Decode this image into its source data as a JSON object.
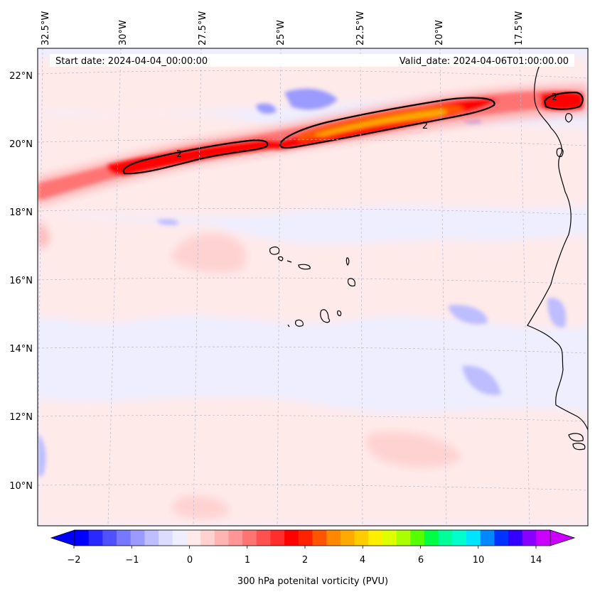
{
  "map": {
    "start_label": "Start date: 2024-04-04_00:00:00",
    "valid_label": "Valid_date: 2024-04-06T01:00:00.00",
    "lon_ticks": [
      "32.5°W",
      "30°W",
      "27.5°W",
      "25°W",
      "22.5°W",
      "20°W",
      "17.5°W"
    ],
    "lat_ticks": [
      "22°N",
      "20°N",
      "18°N",
      "16°N",
      "14°N",
      "12°N",
      "10°N"
    ],
    "contour_labels": [
      "2",
      "2",
      "2"
    ],
    "background_color": "#eeeeff"
  },
  "colorbar": {
    "label": "300 hPa potenital vorticity (PVU)",
    "tick_labels": [
      "−2",
      "−1",
      "0",
      "1",
      "2",
      "4",
      "6",
      "10",
      "14"
    ],
    "colors": [
      "#0000ff",
      "#2828ff",
      "#5050ff",
      "#7777ff",
      "#9a9aff",
      "#bdbdff",
      "#dcdcff",
      "#eeeeff",
      "#ffeaea",
      "#ffd2d2",
      "#ffb4b4",
      "#ff9595",
      "#ff7373",
      "#ff5050",
      "#ff2d2d",
      "#ff0000",
      "#ff2200",
      "#ff5500",
      "#ff8800",
      "#ffaa00",
      "#ffcc00",
      "#ffee00",
      "#ddff00",
      "#aaff00",
      "#55ff00",
      "#00ff44",
      "#00ff99",
      "#00ffcc",
      "#00e5ff",
      "#0088ff",
      "#0033ff",
      "#3300ff",
      "#8800ff",
      "#cc00ff"
    ]
  }
}
